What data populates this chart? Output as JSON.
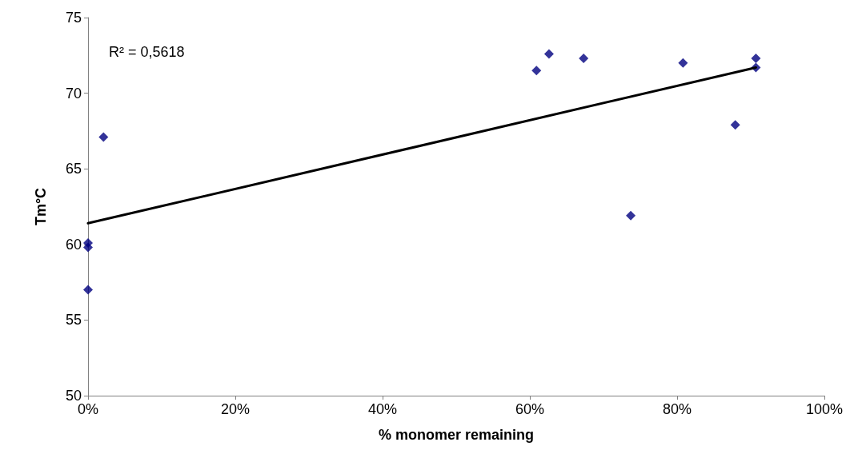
{
  "chart_data": {
    "type": "scatter",
    "xlabel": "% monomer remaining",
    "ylabel": "Tm°C",
    "annotations": [
      "R² = 0,5618"
    ],
    "xlim": [
      0,
      100
    ],
    "xticks": [
      {
        "value": 0,
        "label": "0%"
      },
      {
        "value": 20,
        "label": "20%"
      },
      {
        "value": 40,
        "label": "40%"
      },
      {
        "value": 60,
        "label": "60%"
      },
      {
        "value": 80,
        "label": "80%"
      },
      {
        "value": 100,
        "label": "100%"
      }
    ],
    "ylim": [
      50,
      75
    ],
    "yticks": [
      50,
      55,
      60,
      65,
      70,
      75
    ],
    "grid": false,
    "series": [
      {
        "color": "#000080",
        "marker": "diamond",
        "x": [
          0,
          0,
          0,
          2.1,
          60.9,
          62.6,
          67.3,
          73.7,
          80.8,
          87.9,
          90.7,
          90.7
        ],
        "values": [
          60.1,
          59.8,
          57.0,
          67.1,
          71.5,
          72.6,
          72.3,
          61.9,
          72.0,
          67.9,
          72.3,
          71.7
        ]
      },
      {
        "type": "line",
        "color": "#000000",
        "marker": "none",
        "line_style": "solid",
        "x": [
          0,
          90.7
        ],
        "values": [
          61.4,
          71.7
        ]
      }
    ]
  }
}
